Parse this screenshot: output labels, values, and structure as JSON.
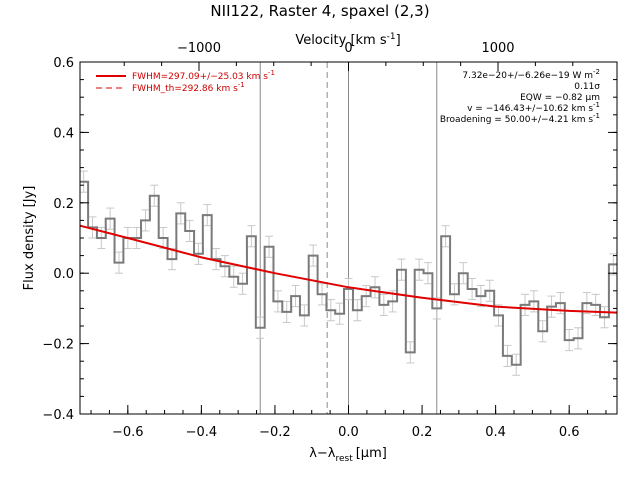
{
  "chart_data": {
    "type": "line",
    "title": "NII122, Raster 4, spaxel (2,3)",
    "xlabel": "λ−λ",
    "xlabel_sub": "rest",
    "xlabel_unit": "[μm]",
    "ylabel": "Flux density [Jy]",
    "top_axis_label": "Velocity [km s",
    "top_axis_label_sup": "-1",
    "top_axis_label_end": "]",
    "xlim": [
      -0.73,
      0.73
    ],
    "ylim": [
      -0.4,
      0.6
    ],
    "x_ticks": [
      -0.6,
      -0.4,
      -0.2,
      0.0,
      0.2,
      0.4,
      0.6
    ],
    "x_tick_labels": [
      "−0.6",
      "−0.4",
      "−0.2",
      "0.0",
      "0.2",
      "0.4",
      "0.6"
    ],
    "y_ticks": [
      -0.4,
      -0.2,
      0.0,
      0.2,
      0.4,
      0.6
    ],
    "y_tick_labels": [
      "−0.4",
      "−0.2",
      "0.0",
      "0.2",
      "0.4",
      "0.6"
    ],
    "top_ticks_kms": [
      -1000,
      0,
      1000
    ],
    "top_tick_labels": [
      "−1000",
      "0",
      "1000"
    ],
    "kms_per_um": 2460,
    "vertical_lines_solid": [
      -0.24,
      0.0,
      0.24
    ],
    "vertical_line_dashed": -0.058,
    "grid": false,
    "legend_position": "top-left",
    "legend": [
      {
        "text": "FWHM=297.09+/−25.03 km s",
        "sup": "-1",
        "style": "solid"
      },
      {
        "text": "FWHM_th=292.86 km s",
        "sup": "-1",
        "style": "dashed"
      }
    ],
    "annotations": [
      {
        "text": "7.32e−20+/−6.26e−19 W m",
        "sup": "-2"
      },
      {
        "text": "0.11σ",
        "sup": ""
      },
      {
        "text": "EQW = −0.82 μm",
        "sup": ""
      },
      {
        "text": "v = −146.43+/−10.62 km s",
        "sup": "-1"
      },
      {
        "text": "Broadening = 50.00+/−4.21 km s",
        "sup": "-1"
      }
    ],
    "spectrum": {
      "name": "data",
      "bin_width": 0.0242,
      "x": [
        -0.72,
        -0.696,
        -0.672,
        -0.648,
        -0.624,
        -0.6,
        -0.576,
        -0.552,
        -0.528,
        -0.504,
        -0.48,
        -0.456,
        -0.432,
        -0.408,
        -0.384,
        -0.36,
        -0.336,
        -0.312,
        -0.288,
        -0.264,
        -0.24,
        -0.216,
        -0.192,
        -0.168,
        -0.144,
        -0.12,
        -0.096,
        -0.072,
        -0.048,
        -0.024,
        0.0,
        0.024,
        0.048,
        0.072,
        0.096,
        0.12,
        0.144,
        0.168,
        0.192,
        0.216,
        0.24,
        0.264,
        0.288,
        0.312,
        0.336,
        0.36,
        0.384,
        0.408,
        0.432,
        0.456,
        0.48,
        0.504,
        0.528,
        0.552,
        0.576,
        0.6,
        0.624,
        0.648,
        0.672,
        0.696,
        0.72
      ],
      "y": [
        0.26,
        0.13,
        0.1,
        0.155,
        0.03,
        0.1,
        0.1,
        0.15,
        0.22,
        0.1,
        0.04,
        0.17,
        0.12,
        0.055,
        0.165,
        0.04,
        0.02,
        -0.01,
        -0.03,
        0.105,
        -0.155,
        0.075,
        -0.08,
        -0.11,
        -0.065,
        -0.12,
        0.05,
        -0.06,
        -0.105,
        -0.115,
        -0.045,
        -0.105,
        -0.065,
        -0.04,
        -0.09,
        -0.08,
        0.01,
        -0.225,
        0.01,
        0.0,
        -0.1,
        0.105,
        -0.06,
        0.0,
        -0.045,
        -0.065,
        -0.05,
        -0.12,
        -0.235,
        -0.26,
        -0.09,
        -0.08,
        -0.165,
        -0.095,
        -0.085,
        -0.19,
        -0.185,
        -0.085,
        -0.09,
        -0.125,
        0.025
      ],
      "err": [
        0.03,
        0.03,
        0.03,
        0.03,
        0.03,
        0.03,
        0.03,
        0.03,
        0.03,
        0.03,
        0.03,
        0.03,
        0.03,
        0.03,
        0.03,
        0.03,
        0.03,
        0.03,
        0.03,
        0.03,
        0.03,
        0.03,
        0.03,
        0.03,
        0.03,
        0.03,
        0.03,
        0.03,
        0.03,
        0.03,
        0.03,
        0.03,
        0.03,
        0.03,
        0.03,
        0.03,
        0.03,
        0.03,
        0.03,
        0.03,
        0.03,
        0.03,
        0.03,
        0.03,
        0.03,
        0.03,
        0.03,
        0.03,
        0.03,
        0.03,
        0.03,
        0.03,
        0.03,
        0.03,
        0.03,
        0.03,
        0.03,
        0.03,
        0.03,
        0.03,
        0.03
      ]
    },
    "fit": {
      "name": "fit",
      "x": [
        -0.73,
        -0.6,
        -0.4,
        -0.2,
        0.0,
        0.2,
        0.4,
        0.6,
        0.73
      ],
      "y": [
        0.135,
        0.1,
        0.045,
        0.0,
        -0.04,
        -0.07,
        -0.095,
        -0.107,
        -0.112
      ]
    },
    "colors": {
      "data": "#7a7a7a",
      "errorbar": "#c8c8c8",
      "fit": "#e00000",
      "legend_text": "#d00000",
      "axes": "#000000",
      "vline": "#8a8a8a"
    }
  }
}
